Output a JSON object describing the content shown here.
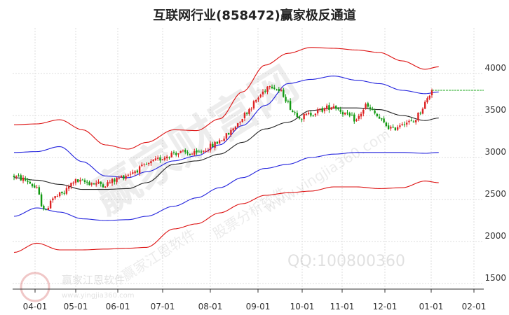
{
  "title": "互联网行业(858472)赢家极反通道",
  "watermarks": {
    "main": "赢家财富网",
    "diag1": "赢家江恩软件",
    "diag2": "股票分析软件",
    "diag3": "www.yingjia360.com",
    "logo_text": "赢家江恩软件",
    "logo_url": "www.yingjia360.com",
    "qq": "QQ:100800360"
  },
  "colors": {
    "candle_up": "#dd2222",
    "candle_down": "#119911",
    "band_outer": "#dd1111",
    "band_inner": "#2222dd",
    "mid_line": "#222222",
    "last_price_line": "#22aa22",
    "grid": "#dddddd"
  },
  "chart_data": {
    "type": "candlestick",
    "y_ticks": [
      1500,
      2000,
      2500,
      3000,
      3500,
      4000
    ],
    "ylim": [
      1450,
      4150
    ],
    "x_ticks": [
      "04-01",
      "05-01",
      "06-01",
      "07-01",
      "08-01",
      "09-01",
      "10-01",
      "11-01",
      "12-01",
      "01-01",
      "02-01"
    ],
    "last_price": 3800,
    "trend_anchors": [
      [
        0,
        2780
      ],
      [
        6,
        2720
      ],
      [
        10,
        2620
      ],
      [
        12,
        2450
      ],
      [
        14,
        2350
      ],
      [
        16,
        2500
      ],
      [
        22,
        2580
      ],
      [
        26,
        2720
      ],
      [
        40,
        2680
      ],
      [
        48,
        2780
      ],
      [
        56,
        2880
      ],
      [
        62,
        2960
      ],
      [
        70,
        3060
      ],
      [
        80,
        3040
      ],
      [
        88,
        3160
      ],
      [
        94,
        3280
      ],
      [
        100,
        3480
      ],
      [
        106,
        3680
      ],
      [
        112,
        3880
      ],
      [
        118,
        3750
      ],
      [
        122,
        3550
      ],
      [
        126,
        3480
      ],
      [
        134,
        3560
      ],
      [
        140,
        3620
      ],
      [
        146,
        3500
      ],
      [
        150,
        3440
      ],
      [
        154,
        3620
      ],
      [
        158,
        3520
      ],
      [
        162,
        3400
      ],
      [
        166,
        3330
      ],
      [
        170,
        3420
      ],
      [
        175,
        3420
      ],
      [
        179,
        3600
      ],
      [
        183,
        3800
      ]
    ],
    "bands": {
      "outer_upper": [
        [
          0,
          3390
        ],
        [
          10,
          3400
        ],
        [
          20,
          3450
        ],
        [
          30,
          3330
        ],
        [
          40,
          3150
        ],
        [
          50,
          3100
        ],
        [
          58,
          3180
        ],
        [
          70,
          3330
        ],
        [
          80,
          3320
        ],
        [
          90,
          3460
        ],
        [
          100,
          3780
        ],
        [
          110,
          4100
        ],
        [
          120,
          4240
        ],
        [
          130,
          4310
        ],
        [
          140,
          4300
        ],
        [
          150,
          4280
        ],
        [
          160,
          4250
        ],
        [
          170,
          4150
        ],
        [
          180,
          4050
        ],
        [
          186,
          4080
        ]
      ],
      "inner_upper": [
        [
          0,
          3060
        ],
        [
          10,
          3070
        ],
        [
          20,
          3130
        ],
        [
          30,
          2950
        ],
        [
          40,
          2780
        ],
        [
          50,
          2760
        ],
        [
          58,
          2830
        ],
        [
          70,
          2960
        ],
        [
          80,
          3020
        ],
        [
          90,
          3150
        ],
        [
          100,
          3380
        ],
        [
          110,
          3620
        ],
        [
          120,
          3880
        ],
        [
          130,
          3930
        ],
        [
          140,
          3970
        ],
        [
          150,
          3920
        ],
        [
          160,
          3880
        ],
        [
          170,
          3800
        ],
        [
          180,
          3760
        ],
        [
          186,
          3780
        ]
      ],
      "mid": [
        [
          0,
          2760
        ],
        [
          10,
          2730
        ],
        [
          20,
          2680
        ],
        [
          30,
          2620
        ],
        [
          40,
          2620
        ],
        [
          50,
          2630
        ],
        [
          58,
          2700
        ],
        [
          70,
          2920
        ],
        [
          80,
          2960
        ],
        [
          90,
          3040
        ],
        [
          100,
          3180
        ],
        [
          110,
          3340
        ],
        [
          120,
          3420
        ],
        [
          130,
          3560
        ],
        [
          140,
          3590
        ],
        [
          150,
          3590
        ],
        [
          160,
          3570
        ],
        [
          170,
          3500
        ],
        [
          180,
          3440
        ],
        [
          186,
          3470
        ]
      ],
      "inner_lower": [
        [
          0,
          2300
        ],
        [
          10,
          2400
        ],
        [
          20,
          2350
        ],
        [
          30,
          2270
        ],
        [
          40,
          2250
        ],
        [
          50,
          2260
        ],
        [
          58,
          2300
        ],
        [
          70,
          2420
        ],
        [
          80,
          2520
        ],
        [
          90,
          2640
        ],
        [
          100,
          2760
        ],
        [
          110,
          2870
        ],
        [
          120,
          2920
        ],
        [
          130,
          3000
        ],
        [
          140,
          3040
        ],
        [
          150,
          3060
        ],
        [
          160,
          3060
        ],
        [
          170,
          3060
        ],
        [
          180,
          3050
        ],
        [
          186,
          3060
        ]
      ],
      "outer_lower": [
        [
          0,
          1870
        ],
        [
          10,
          1980
        ],
        [
          20,
          1900
        ],
        [
          30,
          1900
        ],
        [
          40,
          1910
        ],
        [
          50,
          1920
        ],
        [
          58,
          1930
        ],
        [
          70,
          2150
        ],
        [
          80,
          2210
        ],
        [
          90,
          2340
        ],
        [
          100,
          2450
        ],
        [
          110,
          2550
        ],
        [
          120,
          2580
        ],
        [
          130,
          2600
        ],
        [
          140,
          2650
        ],
        [
          150,
          2650
        ],
        [
          160,
          2630
        ],
        [
          170,
          2640
        ],
        [
          180,
          2720
        ],
        [
          186,
          2700
        ]
      ]
    }
  }
}
